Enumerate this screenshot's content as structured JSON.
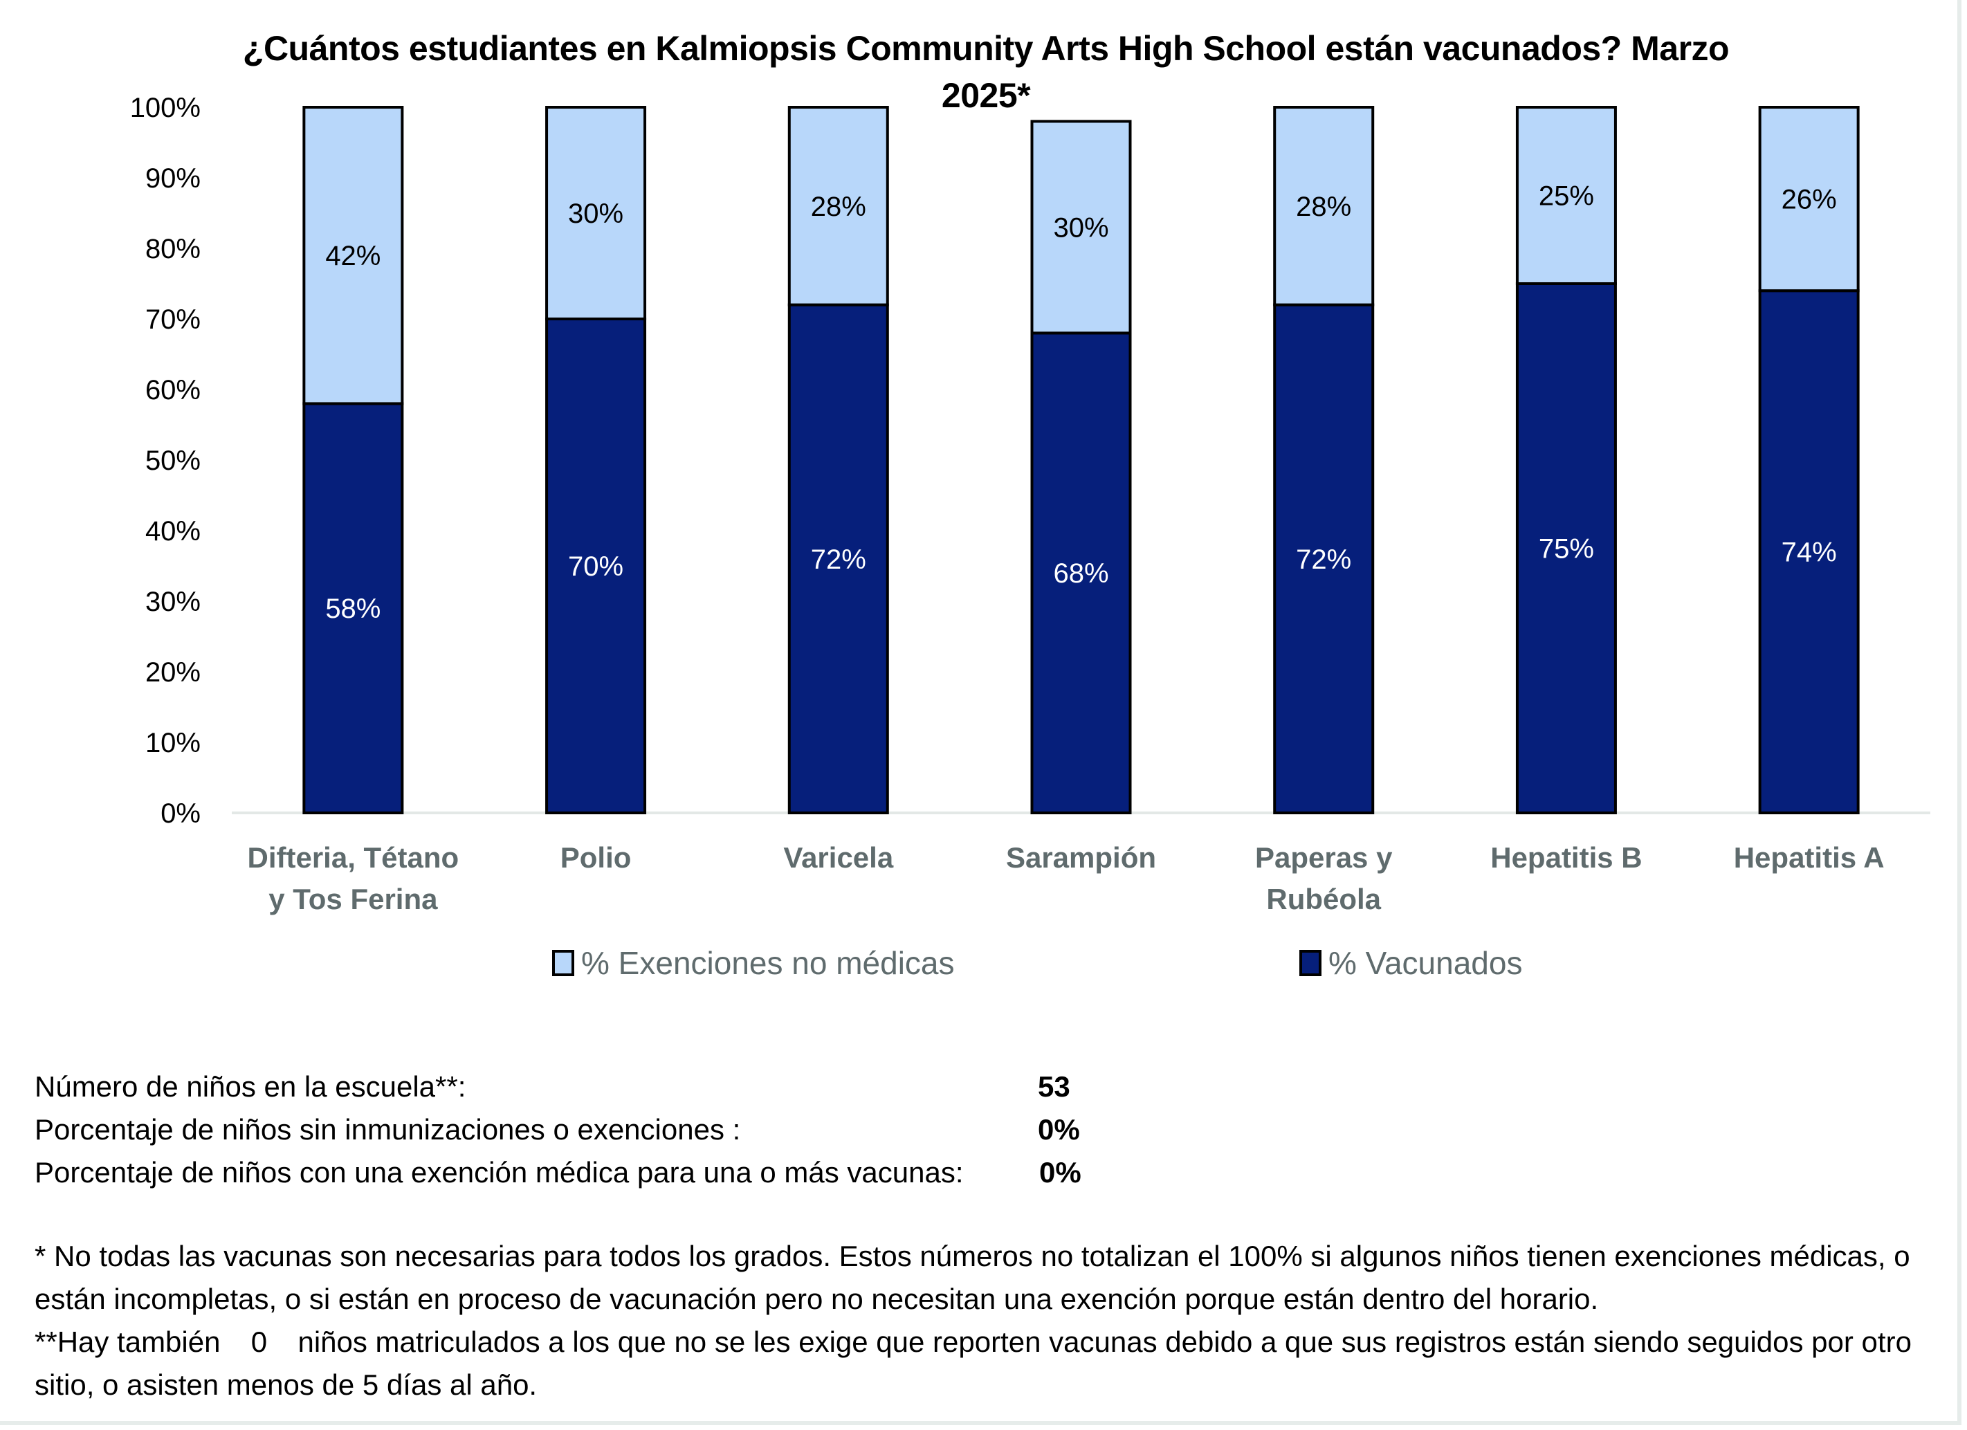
{
  "chart_data": {
    "type": "bar",
    "stacked": true,
    "title": "¿Cuántos estudiantes en Kalmiopsis Community Arts High School están vacunados? Marzo 2025*",
    "xlabel": "",
    "ylabel": "",
    "ylim": [
      0,
      100
    ],
    "yticks": [
      "0%",
      "10%",
      "20%",
      "30%",
      "40%",
      "50%",
      "60%",
      "70%",
      "80%",
      "90%",
      "100%"
    ],
    "categories": [
      [
        "Difteria, Tétano",
        "y Tos Ferina"
      ],
      [
        "Polio"
      ],
      [
        "Varicela"
      ],
      [
        "Sarampión"
      ],
      [
        "Paperas y",
        "Rubéola"
      ],
      [
        "Hepatitis B"
      ],
      [
        "Hepatitis A"
      ]
    ],
    "series": [
      {
        "name": "% Vacunados",
        "color": "#061f7b",
        "label_color": "#ffffff",
        "values": [
          58,
          70,
          72,
          68,
          72,
          75,
          74
        ]
      },
      {
        "name": "% Exenciones no médicas",
        "color": "#b8d7fa",
        "label_color": "#000000",
        "values": [
          42,
          30,
          28,
          30,
          28,
          25,
          26
        ]
      }
    ],
    "legend": {
      "placement": "bottom",
      "order": [
        "% Exenciones no médicas",
        "% Vacunados"
      ]
    },
    "grid": false
  },
  "stats": [
    {
      "label": "Número de niños en la escuela**:",
      "value": "53"
    },
    {
      "label": "Porcentaje de niños sin inmunizaciones o exenciones :",
      "value": "0%"
    },
    {
      "label": "Porcentaje de niños con una exención médica para una o más vacunas:",
      "value": "0%"
    }
  ],
  "notes": {
    "note1": "* No todas las vacunas son necesarias para todos los grados. Estos números no totalizan el  100% si algunos niños tienen exenciones médicas, o están incompletas, o si están en proceso de vacunación pero no necesitan una exención porque están dentro del horario.",
    "note2_prefix": "**Hay también",
    "note2_count": "0",
    "note2_suffix": "niños matriculados a los que no se les exige que reporten vacunas debido a que sus registros están siendo seguidos por otro sitio, o asisten menos de 5 días al año."
  }
}
